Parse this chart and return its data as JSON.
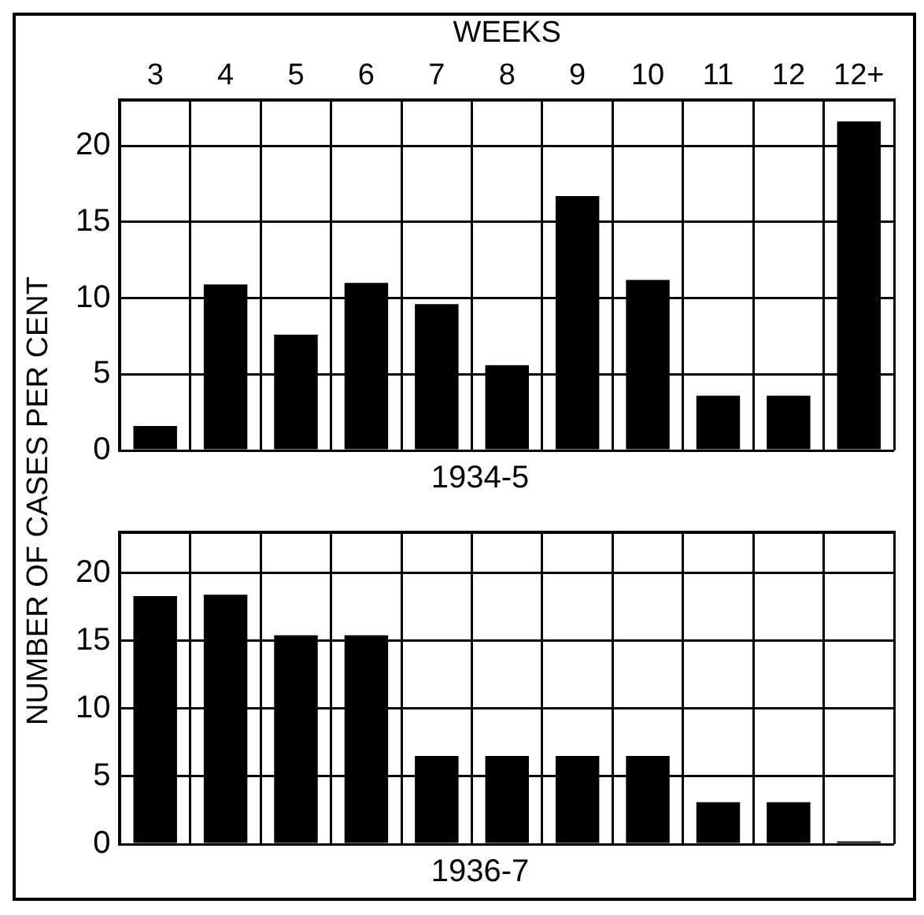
{
  "chart_data": [
    {
      "type": "bar",
      "title": "1934-5",
      "xlabel": "WEEKS",
      "ylabel": "NUMBER OF CASES PER CENT",
      "categories": [
        "3",
        "4",
        "5",
        "6",
        "7",
        "8",
        "9",
        "10",
        "11",
        "12",
        "12+"
      ],
      "values": [
        1.6,
        10.9,
        7.6,
        11.0,
        9.6,
        5.6,
        16.7,
        11.2,
        3.6,
        3.6,
        21.6
      ],
      "color": "#000000",
      "ylim": [
        0,
        23
      ],
      "yticks": [
        0,
        5,
        10,
        15,
        20
      ],
      "grid": true
    },
    {
      "type": "bar",
      "title": "1936-7",
      "categories": [
        null,
        null,
        null,
        null,
        null,
        null,
        null,
        null,
        null,
        null,
        null
      ],
      "values": [
        18.3,
        18.4,
        15.4,
        15.4,
        6.5,
        6.5,
        6.5,
        6.5,
        3.1,
        3.1,
        0.2
      ],
      "color": "#000000",
      "ylim": [
        0,
        23
      ],
      "yticks": [
        0,
        5,
        10,
        15,
        20
      ],
      "grid": true,
      "tick_labels": "y"
    }
  ]
}
